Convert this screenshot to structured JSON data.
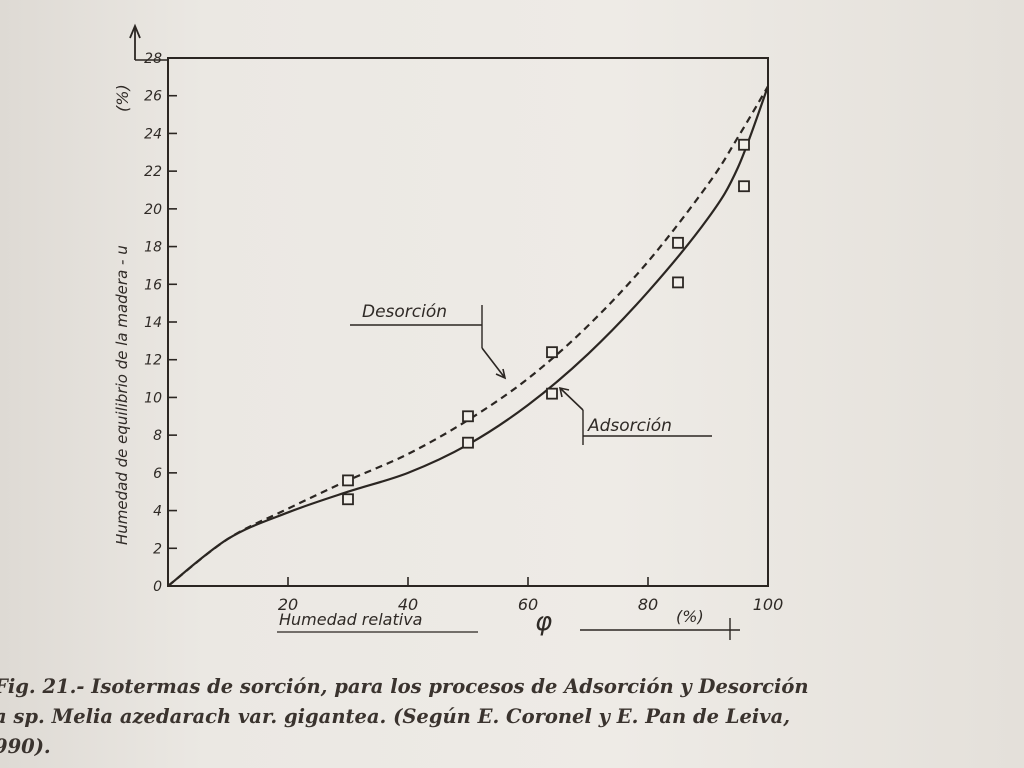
{
  "chart_data": {
    "type": "line",
    "ylabel": "Humedad de equilibrio de la madera - u (%)",
    "xlabel": "Humedad relativa φ (%)",
    "x_ticks": [
      20,
      40,
      60,
      80,
      100
    ],
    "y_ticks": [
      0,
      2,
      4,
      6,
      8,
      10,
      12,
      14,
      16,
      18,
      20,
      22,
      24,
      26,
      28
    ],
    "xlim": [
      0,
      100
    ],
    "ylim": [
      0,
      28
    ],
    "grid": false,
    "series": [
      {
        "name": "Adsorción",
        "style": "solid",
        "curve": {
          "x": [
            0,
            10,
            20,
            30,
            40,
            50,
            60,
            70,
            80,
            90,
            95,
            100
          ],
          "y": [
            0,
            2.5,
            3.9,
            5.0,
            6.0,
            7.5,
            9.6,
            12.3,
            15.6,
            19.5,
            22.2,
            26.5
          ]
        },
        "points": {
          "x": [
            30,
            50,
            64,
            85,
            96
          ],
          "y": [
            4.6,
            7.6,
            10.2,
            16.1,
            21.2
          ]
        }
      },
      {
        "name": "Desorción",
        "style": "dashed",
        "curve": {
          "x": [
            0,
            10,
            20,
            30,
            40,
            50,
            60,
            70,
            80,
            90,
            95,
            100
          ],
          "y": [
            0,
            2.5,
            4.1,
            5.6,
            7.0,
            8.8,
            11.0,
            13.8,
            17.2,
            21.3,
            23.8,
            26.5
          ]
        },
        "points": {
          "x": [
            30,
            50,
            64,
            85,
            96
          ],
          "y": [
            5.6,
            9.0,
            12.4,
            18.2,
            23.4
          ]
        }
      }
    ]
  },
  "labels": {
    "desorcion": "Desorción",
    "adsorcion": "Adsorción",
    "x_axis_text": "Humedad relativa",
    "phi": "φ",
    "unit_x": "(%)",
    "unit_y": "(%)",
    "y_axis_text": "Humedad de equilibrio de la madera - u"
  },
  "caption": {
    "line1": "Fig. 21.- Isotermas de sorción, para los procesos de Adsorción y Desorción",
    "line2": "a sp. Melia azedarach var. gigantea. (Según E. Coronel y E. Pan de Leiva,",
    "line3": "990)."
  }
}
